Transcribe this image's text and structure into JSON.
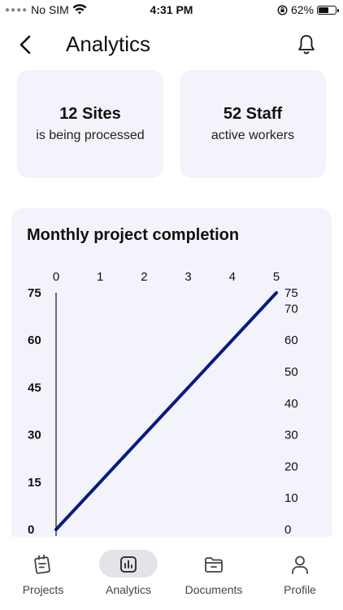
{
  "status_bar": {
    "carrier": "No SIM",
    "time": "4:31 PM",
    "battery": "62%",
    "battery_level": 0.62
  },
  "header": {
    "title": "Analytics"
  },
  "stats": [
    {
      "value": "12 Sites",
      "caption": "is being processed"
    },
    {
      "value": "52 Staff",
      "caption": "active workers"
    }
  ],
  "chart": {
    "title": "Monthly project completion",
    "chart_data": {
      "type": "line",
      "title": "Monthly project completion",
      "x": [
        0,
        5
      ],
      "series": [
        {
          "values": [
            0,
            75
          ]
        }
      ],
      "top_axis_ticks": [
        "0",
        "1",
        "2",
        "3",
        "4",
        "5"
      ],
      "left_axis_ticks": [
        "0",
        "15",
        "30",
        "45",
        "60",
        "75"
      ],
      "right_axis_ticks": [
        "0",
        "10",
        "20",
        "30",
        "40",
        "50",
        "60",
        "70",
        "75"
      ],
      "xlim": [
        0,
        5
      ],
      "ylim": [
        0,
        75
      ],
      "line_color": "#0a1a80",
      "grid": false
    }
  },
  "tabs": [
    {
      "label": "Projects",
      "icon": "projects-icon",
      "active": false
    },
    {
      "label": "Analytics",
      "icon": "analytics-icon",
      "active": true
    },
    {
      "label": "Documents",
      "icon": "documents-icon",
      "active": false
    },
    {
      "label": "Profile",
      "icon": "profile-icon",
      "active": false
    }
  ]
}
